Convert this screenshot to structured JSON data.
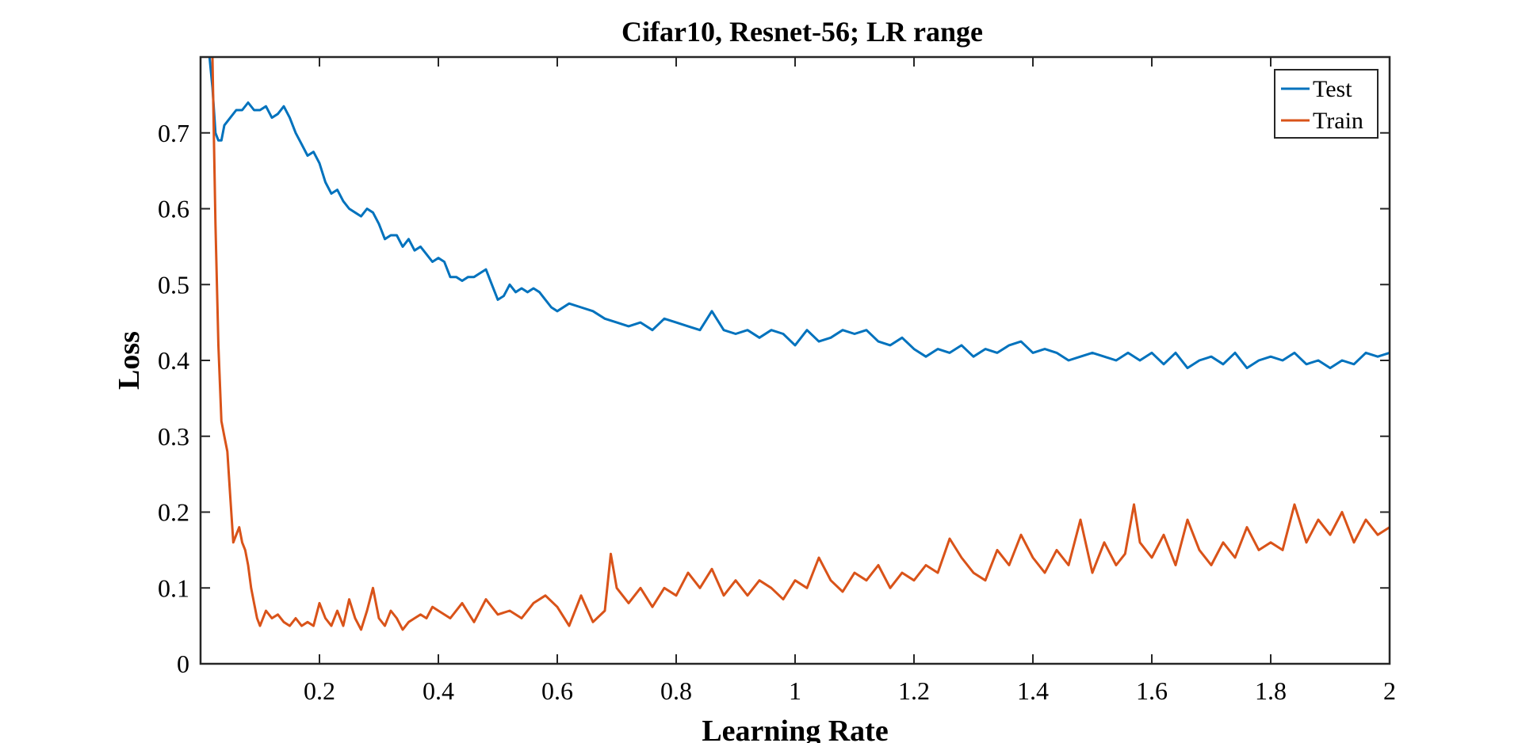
{
  "chart_data": {
    "type": "line",
    "title": "Cifar10, Resnet-56; LR range",
    "xlabel": "Learning Rate",
    "ylabel": "Loss",
    "xlim": [
      0.0,
      2.0
    ],
    "ylim": [
      0.0,
      0.8
    ],
    "xticks": [
      0.2,
      0.4,
      0.6,
      0.8,
      1.0,
      1.2,
      1.4,
      1.6,
      1.8,
      2.0
    ],
    "xtick_labels": [
      "0.2",
      "0.4",
      "0.6",
      "0.8",
      "1",
      "1.2",
      "1.4",
      "1.6",
      "1.8",
      "2"
    ],
    "yticks": [
      0,
      0.1,
      0.2,
      0.3,
      0.4,
      0.5,
      0.6,
      0.7
    ],
    "ytick_labels": [
      "0",
      "0.1",
      "0.2",
      "0.3",
      "0.4",
      "0.5",
      "0.6",
      "0.7"
    ],
    "grid": false,
    "legend_position": "top-right",
    "series": [
      {
        "name": "Test",
        "color": "#0072BD",
        "x": [
          0.015,
          0.02,
          0.025,
          0.03,
          0.035,
          0.04,
          0.05,
          0.06,
          0.07,
          0.08,
          0.09,
          0.1,
          0.11,
          0.12,
          0.13,
          0.14,
          0.15,
          0.16,
          0.17,
          0.18,
          0.19,
          0.2,
          0.21,
          0.22,
          0.23,
          0.24,
          0.25,
          0.26,
          0.27,
          0.28,
          0.29,
          0.3,
          0.31,
          0.32,
          0.33,
          0.34,
          0.35,
          0.36,
          0.37,
          0.38,
          0.39,
          0.4,
          0.41,
          0.42,
          0.43,
          0.44,
          0.45,
          0.46,
          0.47,
          0.48,
          0.49,
          0.5,
          0.51,
          0.52,
          0.53,
          0.54,
          0.55,
          0.56,
          0.57,
          0.58,
          0.59,
          0.6,
          0.62,
          0.64,
          0.66,
          0.68,
          0.7,
          0.72,
          0.74,
          0.76,
          0.78,
          0.8,
          0.82,
          0.84,
          0.86,
          0.88,
          0.9,
          0.92,
          0.94,
          0.96,
          0.98,
          1.0,
          1.02,
          1.04,
          1.06,
          1.08,
          1.1,
          1.12,
          1.14,
          1.16,
          1.18,
          1.2,
          1.22,
          1.24,
          1.26,
          1.28,
          1.3,
          1.32,
          1.34,
          1.36,
          1.38,
          1.4,
          1.42,
          1.44,
          1.46,
          1.48,
          1.5,
          1.52,
          1.54,
          1.56,
          1.58,
          1.6,
          1.62,
          1.64,
          1.66,
          1.68,
          1.7,
          1.72,
          1.74,
          1.76,
          1.78,
          1.8,
          1.82,
          1.84,
          1.86,
          1.88,
          1.9,
          1.92,
          1.94,
          1.96,
          1.98,
          2.0
        ],
        "y": [
          0.8,
          0.76,
          0.7,
          0.69,
          0.69,
          0.71,
          0.72,
          0.73,
          0.73,
          0.74,
          0.73,
          0.73,
          0.735,
          0.72,
          0.725,
          0.735,
          0.72,
          0.7,
          0.685,
          0.67,
          0.675,
          0.66,
          0.635,
          0.62,
          0.625,
          0.61,
          0.6,
          0.595,
          0.59,
          0.6,
          0.595,
          0.58,
          0.56,
          0.565,
          0.565,
          0.55,
          0.56,
          0.545,
          0.55,
          0.54,
          0.53,
          0.535,
          0.53,
          0.51,
          0.51,
          0.505,
          0.51,
          0.51,
          0.515,
          0.52,
          0.5,
          0.48,
          0.485,
          0.5,
          0.49,
          0.495,
          0.49,
          0.495,
          0.49,
          0.48,
          0.47,
          0.465,
          0.475,
          0.47,
          0.465,
          0.455,
          0.45,
          0.445,
          0.45,
          0.44,
          0.455,
          0.45,
          0.445,
          0.44,
          0.465,
          0.44,
          0.435,
          0.44,
          0.43,
          0.44,
          0.435,
          0.42,
          0.44,
          0.425,
          0.43,
          0.44,
          0.435,
          0.44,
          0.425,
          0.42,
          0.43,
          0.415,
          0.405,
          0.415,
          0.41,
          0.42,
          0.405,
          0.415,
          0.41,
          0.42,
          0.425,
          0.41,
          0.415,
          0.41,
          0.4,
          0.405,
          0.41,
          0.405,
          0.4,
          0.41,
          0.4,
          0.41,
          0.395,
          0.41,
          0.39,
          0.4,
          0.405,
          0.395,
          0.41,
          0.39,
          0.4,
          0.405,
          0.4,
          0.41,
          0.395,
          0.4,
          0.39,
          0.4,
          0.395,
          0.41,
          0.405,
          0.41
        ]
      },
      {
        "name": "Train",
        "color": "#D95319",
        "x": [
          0.02,
          0.025,
          0.03,
          0.035,
          0.04,
          0.045,
          0.05,
          0.055,
          0.06,
          0.065,
          0.07,
          0.075,
          0.08,
          0.085,
          0.09,
          0.095,
          0.1,
          0.11,
          0.12,
          0.13,
          0.14,
          0.15,
          0.16,
          0.17,
          0.18,
          0.19,
          0.2,
          0.21,
          0.22,
          0.23,
          0.24,
          0.25,
          0.26,
          0.27,
          0.28,
          0.29,
          0.3,
          0.31,
          0.32,
          0.33,
          0.34,
          0.35,
          0.36,
          0.37,
          0.38,
          0.39,
          0.4,
          0.42,
          0.44,
          0.46,
          0.48,
          0.5,
          0.52,
          0.54,
          0.56,
          0.58,
          0.6,
          0.62,
          0.64,
          0.66,
          0.68,
          0.69,
          0.7,
          0.72,
          0.74,
          0.76,
          0.78,
          0.8,
          0.82,
          0.84,
          0.86,
          0.88,
          0.9,
          0.92,
          0.94,
          0.96,
          0.98,
          1.0,
          1.02,
          1.04,
          1.06,
          1.08,
          1.1,
          1.12,
          1.14,
          1.16,
          1.18,
          1.2,
          1.22,
          1.24,
          1.26,
          1.28,
          1.3,
          1.32,
          1.34,
          1.36,
          1.38,
          1.4,
          1.42,
          1.44,
          1.46,
          1.48,
          1.5,
          1.52,
          1.54,
          1.555,
          1.57,
          1.58,
          1.6,
          1.62,
          1.64,
          1.66,
          1.68,
          1.7,
          1.72,
          1.74,
          1.76,
          1.78,
          1.8,
          1.82,
          1.84,
          1.86,
          1.88,
          1.9,
          1.92,
          1.94,
          1.96,
          1.98,
          2.0
        ],
        "y": [
          0.8,
          0.58,
          0.42,
          0.32,
          0.3,
          0.28,
          0.22,
          0.16,
          0.17,
          0.18,
          0.16,
          0.15,
          0.13,
          0.1,
          0.08,
          0.06,
          0.05,
          0.07,
          0.06,
          0.065,
          0.055,
          0.05,
          0.06,
          0.05,
          0.055,
          0.05,
          0.08,
          0.06,
          0.05,
          0.07,
          0.05,
          0.085,
          0.06,
          0.045,
          0.07,
          0.1,
          0.06,
          0.05,
          0.07,
          0.06,
          0.045,
          0.055,
          0.06,
          0.065,
          0.06,
          0.075,
          0.07,
          0.06,
          0.08,
          0.055,
          0.085,
          0.065,
          0.07,
          0.06,
          0.08,
          0.09,
          0.075,
          0.05,
          0.09,
          0.055,
          0.07,
          0.145,
          0.1,
          0.08,
          0.1,
          0.075,
          0.1,
          0.09,
          0.12,
          0.1,
          0.125,
          0.09,
          0.11,
          0.09,
          0.11,
          0.1,
          0.085,
          0.11,
          0.1,
          0.14,
          0.11,
          0.095,
          0.12,
          0.11,
          0.13,
          0.1,
          0.12,
          0.11,
          0.13,
          0.12,
          0.165,
          0.14,
          0.12,
          0.11,
          0.15,
          0.13,
          0.17,
          0.14,
          0.12,
          0.15,
          0.13,
          0.19,
          0.12,
          0.16,
          0.13,
          0.145,
          0.21,
          0.16,
          0.14,
          0.17,
          0.13,
          0.19,
          0.15,
          0.13,
          0.16,
          0.14,
          0.18,
          0.15,
          0.16,
          0.15,
          0.21,
          0.16,
          0.19,
          0.17,
          0.2,
          0.16,
          0.19,
          0.17,
          0.18
        ]
      }
    ]
  }
}
